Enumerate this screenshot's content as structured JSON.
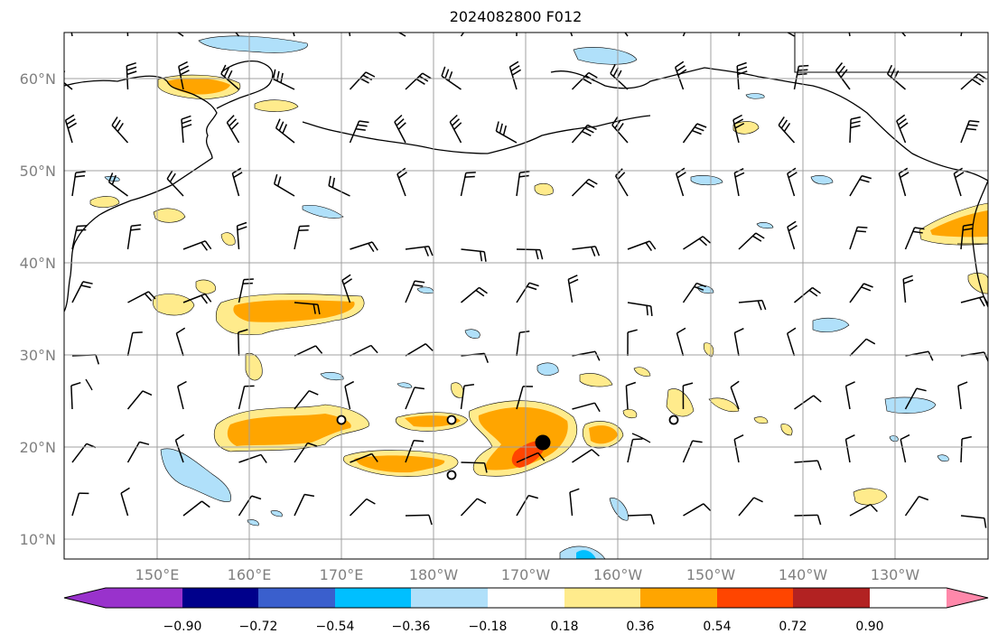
{
  "title": "2024082800 F012",
  "map": {
    "lat_labels": [
      "60°N",
      "50°N",
      "40°N",
      "30°N",
      "20°N",
      "10°N"
    ],
    "lon_labels": [
      "150°E",
      "160°E",
      "170°E",
      "180°W",
      "170°W",
      "160°W",
      "150°W",
      "140°W",
      "130°W"
    ],
    "extent": {
      "lon_min": 140,
      "lon_max": 240,
      "lat_min": 8,
      "lat_max": 65
    },
    "grid": true,
    "storm_center": {
      "lon": 191.4,
      "lat": 20.5
    },
    "track_points": [
      {
        "lon": 170.0,
        "lat": 23.0
      },
      {
        "lon": 182.0,
        "lat": 23.0
      },
      {
        "lon": 182.0,
        "lat": 17.0
      },
      {
        "lon": 205.5,
        "lat": 23.0
      }
    ]
  },
  "colorbar": {
    "ticks": [
      "−0.90",
      "−0.72",
      "−0.54",
      "−0.36",
      "−0.18",
      "0.18",
      "0.36",
      "0.54",
      "0.72",
      "0.90"
    ],
    "colors": [
      "#9932cc",
      "#00008b",
      "#3a5fcd",
      "#00bfff",
      "#b0e0fa",
      "#ffffff",
      "#ffeb8c",
      "#ffa500",
      "#ff4500",
      "#b22222",
      "#ff88aa"
    ]
  }
}
